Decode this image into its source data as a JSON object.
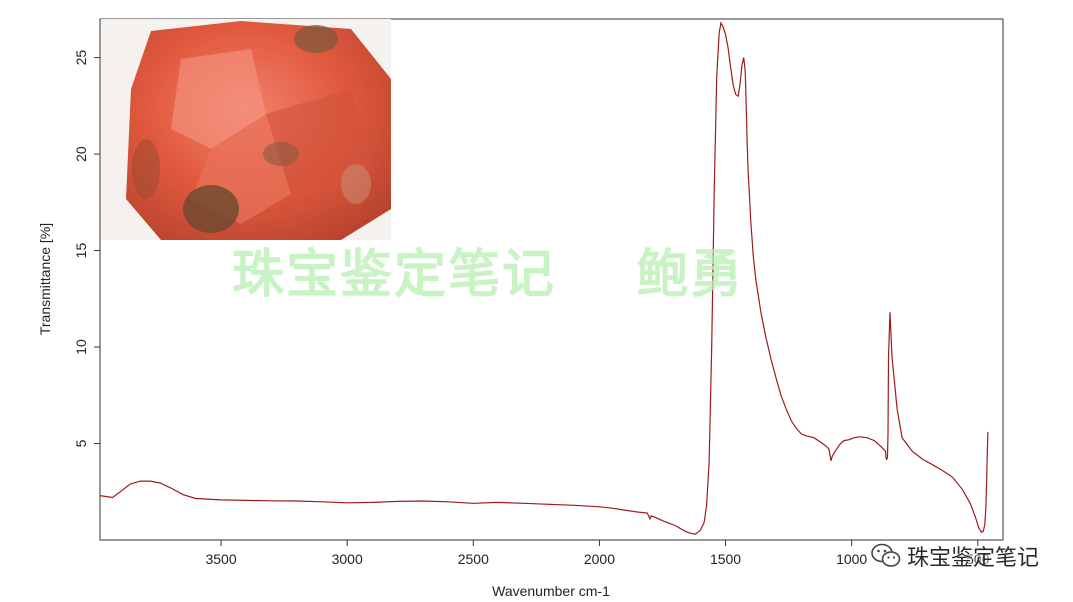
{
  "chart_data": {
    "type": "line",
    "title": "",
    "xlabel": "Wavenumber cm-1",
    "ylabel": "Transmittance [%]",
    "xlim": [
      3980,
      400
    ],
    "ylim": [
      0,
      27
    ],
    "xticks": [
      3500,
      3000,
      2500,
      2000,
      1500,
      1000,
      500
    ],
    "xtick_labels": [
      "3500",
      "3000",
      "2500",
      "2000",
      "1500",
      "1000",
      "500"
    ],
    "yticks": [
      5,
      10,
      15,
      20,
      25
    ],
    "ytick_labels": [
      "5",
      "10",
      "15",
      "20",
      "25"
    ],
    "grid": false,
    "line_color": "#9b1c1c",
    "series": [
      {
        "x": [
          3980,
          3930,
          3900,
          3860,
          3820,
          3780,
          3740,
          3700,
          3650,
          3600,
          3500,
          3400,
          3300,
          3200,
          3100,
          3000,
          2900,
          2800,
          2700,
          2600,
          2500,
          2400,
          2300,
          2200,
          2100,
          2000,
          1950,
          1900,
          1850,
          1810,
          1800,
          1795,
          1780,
          1750,
          1700,
          1660,
          1640,
          1620,
          1600,
          1585,
          1575,
          1565,
          1555,
          1545,
          1535,
          1525,
          1518,
          1510,
          1500,
          1490,
          1480,
          1470,
          1460,
          1450,
          1442,
          1435,
          1428,
          1422,
          1418,
          1414,
          1410,
          1405,
          1400,
          1390,
          1380,
          1360,
          1340,
          1320,
          1300,
          1280,
          1260,
          1240,
          1220,
          1200,
          1180,
          1150,
          1120,
          1100,
          1090,
          1086,
          1083,
          1082,
          1078,
          1070,
          1060,
          1050,
          1040,
          1030,
          1010,
          990,
          970,
          940,
          910,
          880,
          866,
          864,
          862,
          858,
          856,
          854,
          848,
          840,
          820,
          800,
          760,
          720,
          680,
          640,
          600,
          560,
          530,
          510,
          495,
          485,
          478,
          472,
          468,
          465,
          462,
          460
        ],
        "y": [
          2.3,
          2.2,
          2.5,
          2.9,
          3.05,
          3.05,
          2.95,
          2.7,
          2.35,
          2.15,
          2.08,
          2.05,
          2.03,
          2.02,
          1.98,
          1.93,
          1.95,
          2.0,
          2.02,
          1.98,
          1.9,
          1.95,
          1.9,
          1.85,
          1.8,
          1.72,
          1.65,
          1.55,
          1.45,
          1.4,
          1.1,
          1.25,
          1.18,
          1.0,
          0.75,
          0.45,
          0.35,
          0.3,
          0.5,
          0.9,
          1.8,
          4.0,
          10.0,
          18.0,
          24.0,
          26.3,
          26.8,
          26.6,
          26.2,
          25.5,
          24.5,
          23.6,
          23.1,
          23.0,
          23.7,
          24.6,
          25.0,
          24.3,
          22.5,
          20.5,
          19.0,
          17.8,
          16.5,
          14.7,
          13.5,
          11.8,
          10.5,
          9.4,
          8.4,
          7.5,
          6.8,
          6.2,
          5.8,
          5.5,
          5.4,
          5.3,
          5.05,
          4.85,
          4.7,
          4.4,
          4.2,
          4.1,
          4.3,
          4.5,
          4.7,
          4.9,
          5.05,
          5.15,
          5.2,
          5.3,
          5.35,
          5.3,
          5.15,
          4.8,
          4.6,
          4.3,
          4.15,
          4.3,
          5.5,
          9.5,
          11.8,
          9.5,
          6.8,
          5.3,
          4.6,
          4.2,
          3.9,
          3.6,
          3.25,
          2.6,
          1.9,
          1.2,
          0.6,
          0.4,
          0.45,
          0.8,
          1.6,
          3.0,
          4.7,
          5.6
        ]
      }
    ]
  },
  "watermark": {
    "text": "珠宝鉴定笔记    鲍勇"
  },
  "brand": {
    "text": "珠宝鉴定笔记",
    "icon": "wechat-icon"
  },
  "photo": {
    "icon": "red-coral-gemstone-photo"
  }
}
